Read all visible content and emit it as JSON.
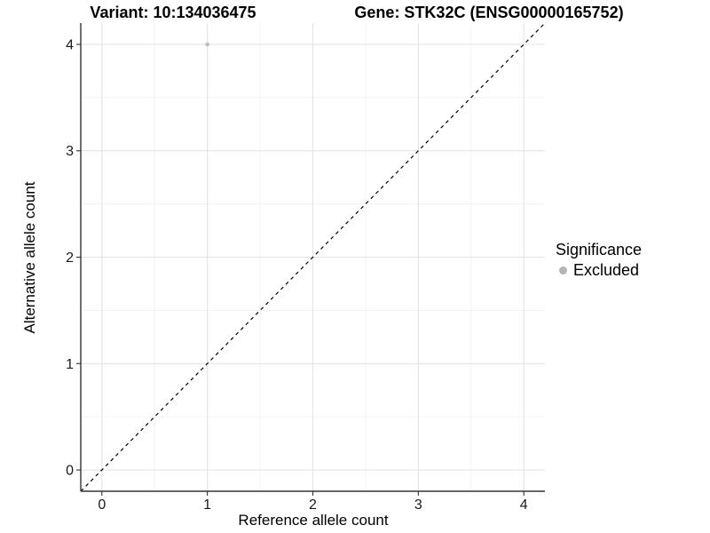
{
  "header": {
    "variant_title": "Variant: 10:134036475",
    "gene_title": "Gene: STK32C (ENSG00000165752)"
  },
  "axes": {
    "x_label": "Reference allele count",
    "y_label": "Alternative allele count"
  },
  "legend": {
    "title": "Significance",
    "items": [
      {
        "label": "Excluded",
        "color": "#b5b5b5",
        "marker": "dot"
      }
    ]
  },
  "chart_data": {
    "type": "scatter",
    "title_left": "Variant: 10:134036475",
    "title_right": "Gene: STK32C (ENSG00000165752)",
    "xlabel": "Reference allele count",
    "ylabel": "Alternative allele count",
    "xlim": [
      -0.2,
      4.2
    ],
    "ylim": [
      -0.2,
      4.2
    ],
    "xticks": [
      0,
      1,
      2,
      3,
      4
    ],
    "yticks": [
      0,
      1,
      2,
      3,
      4
    ],
    "minor_xticks": [
      0.5,
      1.5,
      2.5,
      3.5
    ],
    "minor_yticks": [
      0.5,
      1.5,
      2.5,
      3.5
    ],
    "grid": true,
    "legend_position": "right",
    "legend_title": "Significance",
    "series": [
      {
        "name": "Excluded",
        "color": "#bebebe",
        "marker": "circle",
        "points": [
          {
            "x": 1,
            "y": 4
          }
        ]
      }
    ],
    "reference_line": {
      "type": "identity",
      "slope": 1,
      "intercept": 0,
      "style": "dashed",
      "color": "#000000"
    },
    "colors": {
      "panel_background": "#ffffff",
      "major_grid": "#e4e4e4",
      "minor_grid": "#f1f1f1",
      "axis_line": "#333333",
      "tick_label": "#1a1a1a",
      "excluded_point": "#bebebe"
    }
  }
}
